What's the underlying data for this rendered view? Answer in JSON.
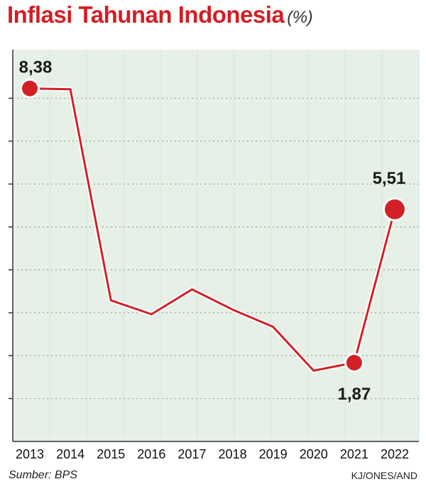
{
  "title": "Inflasi Tahunan Indonesia",
  "unit": "(%)",
  "source": "Sumber: BPS",
  "credit": "KJ/ONES/AND",
  "colors": {
    "accent": "#d21f26",
    "line": "#d32027",
    "background": "#e6f0e6",
    "grid": "#9aa09a"
  },
  "chart_data": {
    "type": "line",
    "title": "Inflasi Tahunan Indonesia",
    "ylabel": "%",
    "xlabel": "",
    "categories": [
      "2013",
      "2014",
      "2015",
      "2016",
      "2017",
      "2018",
      "2019",
      "2020",
      "2021",
      "2022"
    ],
    "values": [
      8.38,
      8.36,
      3.35,
      3.02,
      3.61,
      3.13,
      2.72,
      1.68,
      1.87,
      5.51
    ],
    "ylim": [
      0,
      9.3
    ],
    "grid": true,
    "markers": [
      {
        "index": 0,
        "label": "8,38"
      },
      {
        "index": 8,
        "label": "1,87"
      },
      {
        "index": 9,
        "label": "5,51"
      }
    ]
  }
}
